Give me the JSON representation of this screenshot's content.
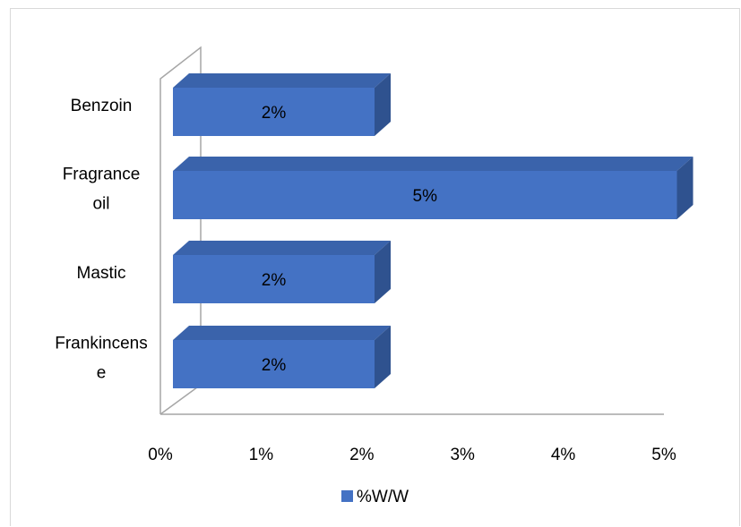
{
  "chart_data": {
    "type": "bar",
    "orientation": "horizontal",
    "style": "3d",
    "categories": [
      "Benzoin",
      "Fragrance oil",
      "Mastic",
      "Frankincense"
    ],
    "category_label_lines": [
      [
        "Benzoin"
      ],
      [
        "Fragrance",
        "oil"
      ],
      [
        "Mastic"
      ],
      [
        "Frankincens",
        "e"
      ]
    ],
    "series": [
      {
        "name": "%W/W",
        "values": [
          2,
          5,
          2,
          2
        ],
        "color": "#4472c4",
        "top_color": "#3a63ab",
        "side_color": "#2f528f"
      }
    ],
    "data_labels": [
      "2%",
      "5%",
      "2%",
      "2%"
    ],
    "x_ticks": [
      "0%",
      "1%",
      "2%",
      "3%",
      "4%",
      "5%"
    ],
    "xlim": [
      0,
      5
    ],
    "title": "",
    "xlabel": "",
    "ylabel": "",
    "grid": false,
    "legend_position": "bottom"
  }
}
